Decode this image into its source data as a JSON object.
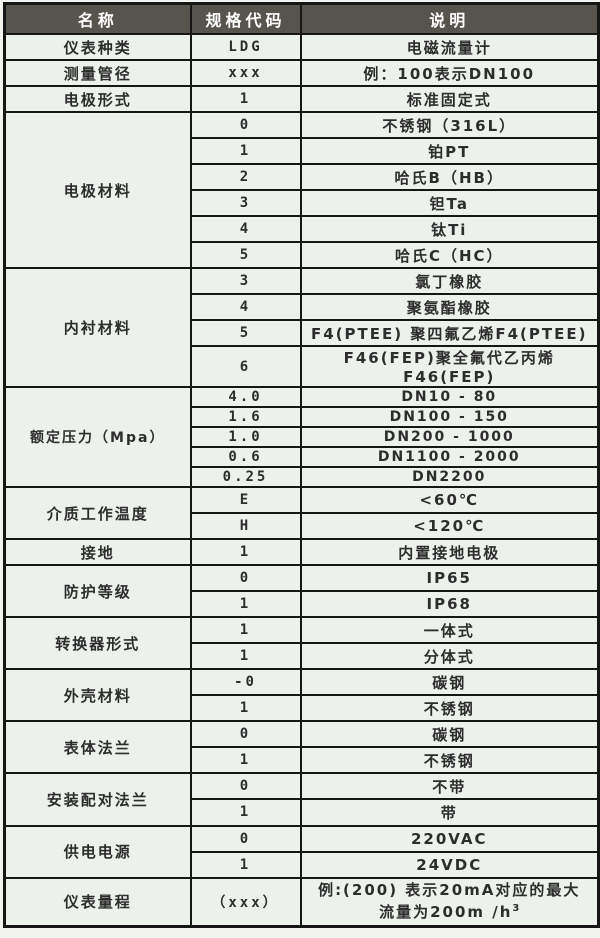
{
  "table": {
    "title_semantic": "electromagnetic-flowmeter-model-selection-table",
    "colors": {
      "header_bg": "#57534d",
      "header_text": "#ffffff",
      "cell_bg": "#ecf1ec",
      "grid_border": "#161616",
      "cell_text": "#2d2d2d"
    },
    "headers": [
      "名称",
      "规格代码",
      "说明"
    ],
    "groups": [
      {
        "name": "仪表种类",
        "rows": [
          {
            "code": "LDG",
            "desc": "电磁流量计"
          }
        ]
      },
      {
        "name": "测量管径",
        "rows": [
          {
            "code": "xxx",
            "desc": "例：100表示DN100"
          }
        ]
      },
      {
        "name": "电极形式",
        "rows": [
          {
            "code": "1",
            "desc": "标准固定式"
          }
        ]
      },
      {
        "name": "电极材料",
        "rows": [
          {
            "code": "0",
            "desc": "不锈钢（316L）"
          },
          {
            "code": "1",
            "desc": "铂PT"
          },
          {
            "code": "2",
            "desc": "哈氏B（HB）"
          },
          {
            "code": "3",
            "desc": "钽Ta"
          },
          {
            "code": "4",
            "desc": "钛Ti"
          },
          {
            "code": "5",
            "desc": "哈氏C（HC）"
          }
        ]
      },
      {
        "name": "内衬材料",
        "rows": [
          {
            "code": "3",
            "desc": "氯丁橡胶"
          },
          {
            "code": "4",
            "desc": "聚氨酯橡胶"
          },
          {
            "code": "5",
            "desc": "F4(PTEE) 聚四氟乙烯F4(PTEE)"
          },
          {
            "code": "6",
            "desc": "F46(FEP)聚全氟代乙丙烯F46(FEP)"
          }
        ]
      },
      {
        "name": "额定压力（Mpa）",
        "compact": true,
        "rows": [
          {
            "code": "4.0",
            "desc": "DN10 - 80"
          },
          {
            "code": "1.6",
            "desc": "DN100 - 150"
          },
          {
            "code": "1.0",
            "desc": "DN200 - 1000"
          },
          {
            "code": "0.6",
            "desc": "DN1100 - 2000"
          },
          {
            "code": "0.25",
            "desc": "DN2200"
          }
        ]
      },
      {
        "name": "介质工作温度",
        "rows": [
          {
            "code": "E",
            "desc": "<60℃"
          },
          {
            "code": "H",
            "desc": "<120℃"
          }
        ]
      },
      {
        "name": "接地",
        "rows": [
          {
            "code": "1",
            "desc": "内置接地电极"
          }
        ]
      },
      {
        "name": "防护等级",
        "rows": [
          {
            "code": "0",
            "desc": "IP65"
          },
          {
            "code": "1",
            "desc": "IP68"
          }
        ]
      },
      {
        "name": "转换器形式",
        "rows": [
          {
            "code": "1",
            "desc": "一体式"
          },
          {
            "code": "1",
            "desc": "分体式"
          }
        ]
      },
      {
        "name": "外壳材料",
        "rows": [
          {
            "code": "-0",
            "desc": "碳钢"
          },
          {
            "code": "1",
            "desc": "不锈钢"
          }
        ]
      },
      {
        "name": "表体法兰",
        "rows": [
          {
            "code": "0",
            "desc": "碳钢"
          },
          {
            "code": "1",
            "desc": "不锈钢"
          }
        ]
      },
      {
        "name": "安装配对法兰",
        "rows": [
          {
            "code": "0",
            "desc": "不带"
          },
          {
            "code": "1",
            "desc": "带"
          }
        ]
      },
      {
        "name": "供电电源",
        "rows": [
          {
            "code": "0",
            "desc": "220VAC"
          },
          {
            "code": "1",
            "desc": "24VDC"
          }
        ]
      },
      {
        "name": "仪表量程",
        "tall": true,
        "rows": [
          {
            "code": "（xxx）",
            "desc_lines": [
              {
                "text": "例:(200) 表示20mA对应的最大"
              },
              {
                "text": "流量为200m /h",
                "sup": "3"
              }
            ]
          }
        ]
      }
    ]
  }
}
